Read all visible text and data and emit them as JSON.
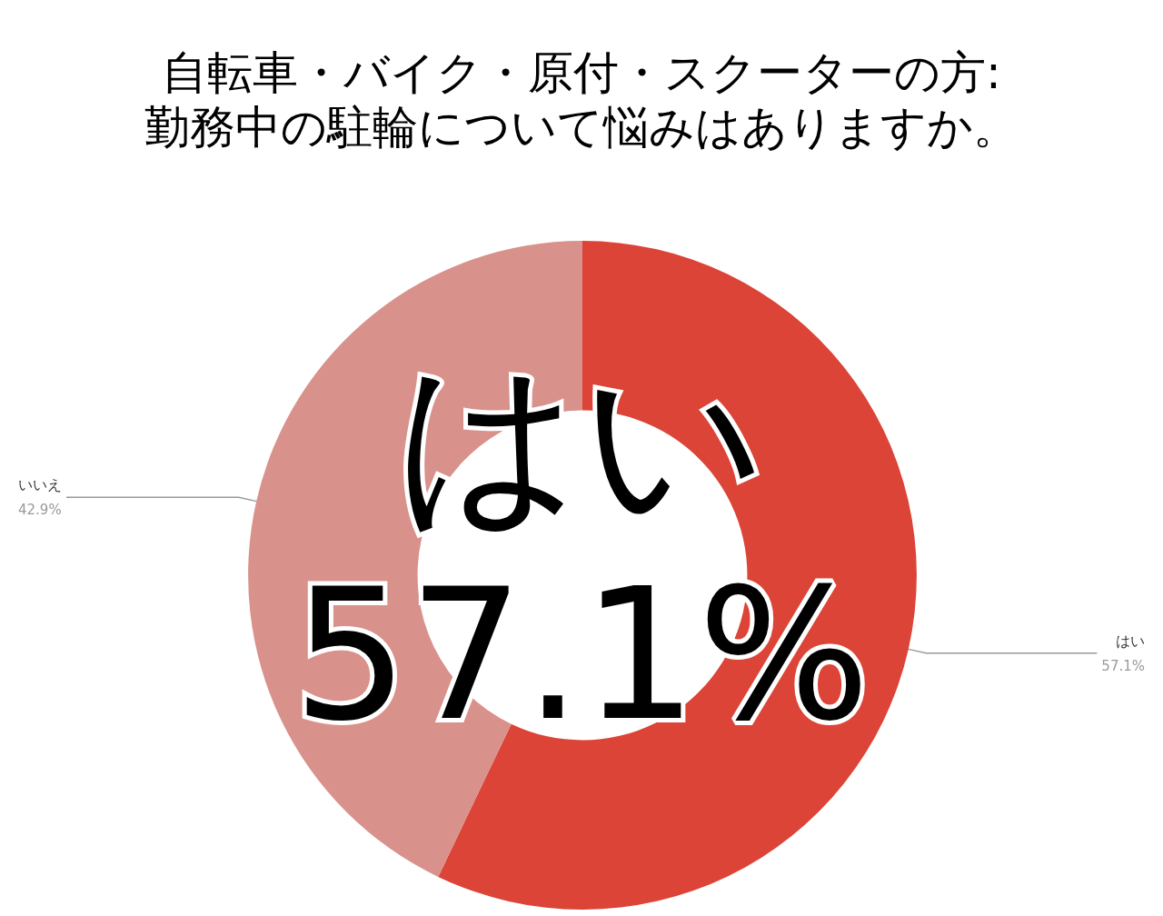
{
  "chart_data": {
    "type": "donut",
    "title": "自転車・バイク・原付・スクーターの方:\n勤務中の駐輪について悩みはありますか。",
    "categories": [
      "はい",
      "いいえ"
    ],
    "values": [
      57.1,
      42.9
    ],
    "value_labels": [
      "57.1%",
      "42.9%"
    ],
    "colors": [
      "#db4437",
      "#d9918b"
    ],
    "annotations": [
      "はい",
      "57.1%"
    ],
    "legend": false
  }
}
